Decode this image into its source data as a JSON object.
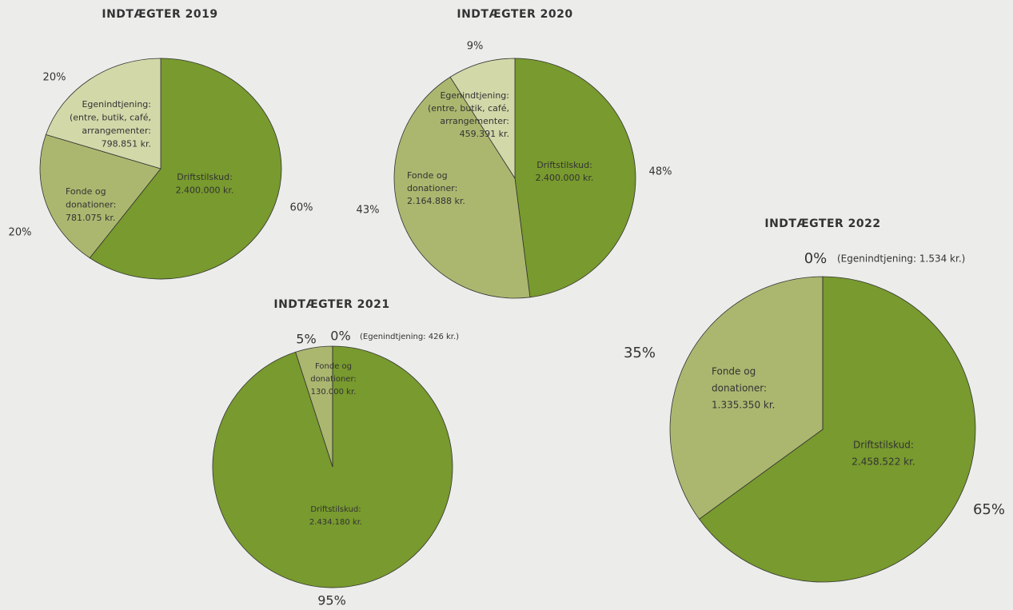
{
  "chart_data": [
    {
      "type": "pie",
      "title": "INDTÆGTER 2019",
      "categories": [
        [
          "Driftstilskud:",
          "2.400.000 kr."
        ],
        [
          "Fonde og",
          "donationer:",
          "781.075 kr."
        ],
        [
          "Egenindtjening:",
          "(entre, butik, café,",
          "arrangementer:",
          "798.851 kr."
        ]
      ],
      "values": [
        60,
        20,
        20
      ],
      "value_labels": [
        "60%",
        "20%",
        "20%"
      ],
      "colors": [
        "#789a2e",
        "#abb76f",
        "#d3d8a9"
      ]
    },
    {
      "type": "pie",
      "title": "INDTÆGTER 2020",
      "categories": [
        [
          "Driftstilskud:",
          "2.400.000 kr."
        ],
        [
          "Fonde og",
          "donationer:",
          "2.164.888 kr."
        ],
        [
          "Egenindtjening:",
          "(entre, butik, café,",
          "arrangementer:",
          "459.391 kr."
        ]
      ],
      "values": [
        48,
        43,
        9
      ],
      "value_labels": [
        "48%",
        "43%",
        "9%"
      ],
      "colors": [
        "#789a2e",
        "#abb76f",
        "#d3d8a9"
      ]
    },
    {
      "type": "pie",
      "title": "INDTÆGTER 2021",
      "categories": [
        [
          "Driftstilskud:",
          "2.434.180 kr."
        ],
        [
          "Fonde og",
          "donationer:",
          "130.000 kr."
        ],
        [
          "(Egenindtjening: 426 kr.)"
        ]
      ],
      "values": [
        95,
        5,
        0
      ],
      "value_labels": [
        "95%",
        "5%",
        "0%"
      ],
      "colors": [
        "#789a2e",
        "#abb76f",
        "#d3d8a9"
      ]
    },
    {
      "type": "pie",
      "title": "INDTÆGTER 2022",
      "categories": [
        [
          "Driftstilskud:",
          "2.458.522 kr."
        ],
        [
          "Fonde og",
          "donationer:",
          "1.335.350 kr."
        ],
        [
          "(Egenindtjening: 1.534 kr.)"
        ]
      ],
      "values": [
        65,
        35,
        0
      ],
      "value_labels": [
        "65%",
        "35%",
        "0%"
      ],
      "colors": [
        "#789a2e",
        "#abb76f",
        "#d3d8a9"
      ]
    }
  ]
}
